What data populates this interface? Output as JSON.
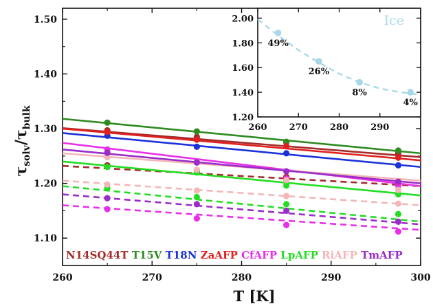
{
  "chart_data": [
    {
      "type": "line",
      "xlabel": "T [K]",
      "ylabel": "τsolv/τbulk",
      "ylabel_main": "τ",
      "ylabel_sub1": "solv",
      "ylabel_slash": "/τ",
      "ylabel_sub2": "bulk",
      "xlim": [
        260,
        300
      ],
      "ylim": [
        1.05,
        1.52
      ],
      "xticks": [
        "260",
        "270",
        "280",
        "290",
        "300"
      ],
      "yticks": [
        "1.10",
        "1.20",
        "1.30",
        "1.40",
        "1.50"
      ],
      "grid": false,
      "legend_position": "bottom",
      "series": [
        {
          "name": "N14SQ44T",
          "color": "#a52a2a",
          "fits": [
            {
              "style": "solid",
              "x": [
                260,
                300
              ],
              "y": [
                1.301,
                1.248
              ]
            },
            {
              "style": "dashed",
              "x": [
                260,
                300
              ],
              "y": [
                1.232,
                1.195
              ]
            }
          ],
          "points": [
            {
              "x": [
                265,
                275,
                285,
                297.5
              ],
              "y": [
                1.297,
                1.285,
                1.275,
                1.255
              ]
            },
            {
              "x": [
                265,
                275,
                285,
                297.5
              ],
              "y": [
                1.233,
                1.223,
                1.212,
                1.2
              ]
            }
          ]
        },
        {
          "name": "T15V",
          "color": "#2e8b20",
          "fits": [
            {
              "style": "solid",
              "x": [
                260,
                300
              ],
              "y": [
                1.318,
                1.255
              ]
            }
          ],
          "points": [
            {
              "x": [
                265,
                275,
                285,
                297.5
              ],
              "y": [
                1.311,
                1.295,
                1.276,
                1.26
              ]
            }
          ]
        },
        {
          "name": "T18N",
          "color": "#1a32d8",
          "fits": [
            {
              "style": "solid",
              "x": [
                260,
                300
              ],
              "y": [
                1.292,
                1.23
              ]
            }
          ],
          "points": [
            {
              "x": [
                265,
                275,
                285,
                297.5
              ],
              "y": [
                1.287,
                1.267,
                1.255,
                1.233
              ]
            }
          ]
        },
        {
          "name": "ZaAFP",
          "color": "#e0201e",
          "fits": [
            {
              "style": "solid",
              "x": [
                260,
                300
              ],
              "y": [
                1.3,
                1.242
              ]
            }
          ],
          "points": [
            {
              "x": [
                265,
                275,
                285,
                297.5
              ],
              "y": [
                1.294,
                1.28,
                1.268,
                1.247
              ]
            }
          ]
        },
        {
          "name": "CfAFP",
          "color": "#e830e8",
          "fits": [
            {
              "style": "solid",
              "x": [
                260,
                300
              ],
              "y": [
                1.274,
                1.195
              ]
            },
            {
              "style": "dashed",
              "x": [
                260,
                300
              ],
              "y": [
                1.16,
                1.115
              ]
            }
          ],
          "points": [
            {
              "x": [
                265,
                275,
                285,
                297.5
              ],
              "y": [
                1.262,
                1.239,
                1.209,
                1.196
              ]
            },
            {
              "x": [
                265,
                275,
                285,
                297.5
              ],
              "y": [
                1.153,
                1.136,
                1.124,
                1.112
              ]
            }
          ]
        },
        {
          "name": "LpAFP",
          "color": "#22dd22",
          "fits": [
            {
              "style": "solid",
              "x": [
                260,
                300
              ],
              "y": [
                1.24,
                1.178
              ]
            },
            {
              "style": "dashed",
              "x": [
                260,
                300
              ],
              "y": [
                1.195,
                1.13
              ]
            }
          ],
          "points": [
            {
              "x": [
                265,
                275,
                285,
                297.5
              ],
              "y": [
                1.23,
                1.22,
                1.196,
                1.18
              ]
            },
            {
              "x": [
                265,
                275,
                285,
                297.5
              ],
              "y": [
                1.191,
                1.175,
                1.162,
                1.144
              ]
            }
          ]
        },
        {
          "name": "RiAFP",
          "color": "#f4b6b6",
          "fits": [
            {
              "style": "solid",
              "x": [
                260,
                300
              ],
              "y": [
                1.255,
                1.205
              ]
            },
            {
              "style": "dashed",
              "x": [
                260,
                300
              ],
              "y": [
                1.205,
                1.16
              ]
            }
          ],
          "points": [
            {
              "x": [
                265,
                275,
                285,
                297.5
              ],
              "y": [
                1.248,
                1.225,
                1.206,
                1.188
              ]
            },
            {
              "x": [
                265,
                275,
                285,
                297.5
              ],
              "y": [
                1.198,
                1.187,
                1.177,
                1.163
              ]
            }
          ]
        },
        {
          "name": "TmAFP",
          "color": "#9a2cc8",
          "fits": [
            {
              "style": "solid",
              "x": [
                260,
                300
              ],
              "y": [
                1.262,
                1.2
              ]
            },
            {
              "style": "dashed",
              "x": [
                260,
                300
              ],
              "y": [
                1.18,
                1.125
              ]
            }
          ],
          "points": [
            {
              "x": [
                265,
                275,
                285,
                297.5
              ],
              "y": [
                1.256,
                1.238,
                1.222,
                1.203
              ]
            },
            {
              "x": [
                265,
                275,
                285,
                297.5
              ],
              "y": [
                1.173,
                1.162,
                1.15,
                1.13
              ]
            }
          ]
        }
      ]
    },
    {
      "type": "scatter",
      "title": "Ice",
      "title_color": "#aedbe8",
      "xlim": [
        260,
        300
      ],
      "ylim": [
        1.2,
        2.08
      ],
      "xticks": [
        "260",
        "270",
        "280",
        "290"
      ],
      "yticks": [
        "1.20",
        "1.40",
        "1.60",
        "1.80",
        "2.00"
      ],
      "series": [
        {
          "color": "#a8d8e8",
          "x": [
            265,
            275,
            285,
            297.5
          ],
          "y": [
            1.88,
            1.65,
            1.48,
            1.4
          ],
          "labels": [
            "49%",
            "26%",
            "8%",
            "4%"
          ],
          "fit_x": [
            260,
            265,
            270,
            275,
            280,
            285,
            290,
            295,
            300
          ],
          "fit_y": [
            1.99,
            1.86,
            1.74,
            1.64,
            1.55,
            1.48,
            1.43,
            1.4,
            1.38
          ]
        }
      ]
    }
  ]
}
